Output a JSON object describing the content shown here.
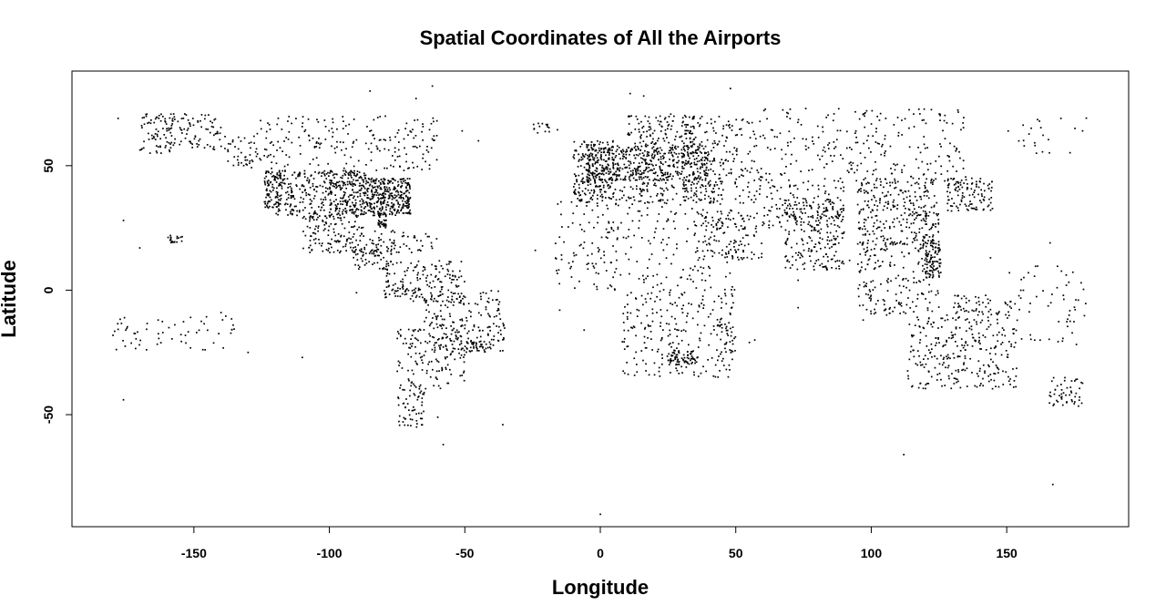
{
  "chart_data": {
    "type": "scatter",
    "title": "Spatial Coordinates of All the Airports",
    "xlabel": "Longitude",
    "ylabel": "Latitude",
    "xlim": [
      -195,
      195
    ],
    "ylim": [
      -95,
      88
    ],
    "xticks": [
      -150,
      -100,
      -50,
      0,
      50,
      100,
      150
    ],
    "yticks": [
      -50,
      0,
      50
    ],
    "xtick_labels": [
      "-150",
      "-100",
      "-50",
      "0",
      "50",
      "100",
      "150"
    ],
    "ytick_labels": [
      "-50",
      "0",
      "50"
    ],
    "grid": false,
    "marker_color": "#000000",
    "regions": [
      {
        "lon": [
          -170,
          -140
        ],
        "lat": [
          55,
          71
        ],
        "n": 150
      },
      {
        "lon": [
          -140,
          -125
        ],
        "lat": [
          50,
          62
        ],
        "n": 40
      },
      {
        "lon": [
          -130,
          -60
        ],
        "lat": [
          48,
          70
        ],
        "n": 210
      },
      {
        "lon": [
          -124,
          -118
        ],
        "lat": [
          33,
          48
        ],
        "n": 90
      },
      {
        "lon": [
          -120,
          -100
        ],
        "lat": [
          30,
          48
        ],
        "n": 180
      },
      {
        "lon": [
          -100,
          -85
        ],
        "lat": [
          30,
          48
        ],
        "n": 260
      },
      {
        "lon": [
          -85,
          -70
        ],
        "lat": [
          30,
          45
        ],
        "n": 300
      },
      {
        "lon": [
          -82,
          -79
        ],
        "lat": [
          25,
          31
        ],
        "n": 40
      },
      {
        "lon": [
          -110,
          -86
        ],
        "lat": [
          15,
          30
        ],
        "n": 140
      },
      {
        "lon": [
          -92,
          -77
        ],
        "lat": [
          8,
          17
        ],
        "n": 60
      },
      {
        "lon": [
          -85,
          -60
        ],
        "lat": [
          15,
          24
        ],
        "n": 60
      },
      {
        "lon": [
          -160,
          -154
        ],
        "lat": [
          19,
          22
        ],
        "n": 20
      },
      {
        "lon": [
          -80,
          -50
        ],
        "lat": [
          -5,
          12
        ],
        "n": 180
      },
      {
        "lon": [
          -65,
          -35
        ],
        "lat": [
          -25,
          0
        ],
        "n": 180
      },
      {
        "lon": [
          -52,
          -40
        ],
        "lat": [
          -25,
          -20
        ],
        "n": 40
      },
      {
        "lon": [
          -75,
          -50
        ],
        "lat": [
          -40,
          -15
        ],
        "n": 140
      },
      {
        "lon": [
          -75,
          -65
        ],
        "lat": [
          -55,
          -38
        ],
        "n": 60
      },
      {
        "lon": [
          -180,
          -135
        ],
        "lat": [
          -24,
          -10
        ],
        "n": 60
      },
      {
        "lon": [
          -25,
          -13
        ],
        "lat": [
          63,
          67
        ],
        "n": 15
      },
      {
        "lon": [
          -10,
          5
        ],
        "lat": [
          36,
          60
        ],
        "n": 150
      },
      {
        "lon": [
          -5,
          40
        ],
        "lat": [
          44,
          58
        ],
        "n": 520
      },
      {
        "lon": [
          10,
          35
        ],
        "lat": [
          58,
          71
        ],
        "n": 120
      },
      {
        "lon": [
          -10,
          45
        ],
        "lat": [
          35,
          45
        ],
        "n": 170
      },
      {
        "lon": [
          30,
          60
        ],
        "lat": [
          35,
          70
        ],
        "n": 220
      },
      {
        "lon": [
          -17,
          50
        ],
        "lat": [
          0,
          37
        ],
        "n": 260
      },
      {
        "lon": [
          8,
          50
        ],
        "lat": [
          -35,
          0
        ],
        "n": 230
      },
      {
        "lon": [
          25,
          35
        ],
        "lat": [
          -30,
          -24
        ],
        "n": 60
      },
      {
        "lon": [
          43,
          50
        ],
        "lat": [
          -25,
          -12
        ],
        "n": 30
      },
      {
        "lon": [
          35,
          60
        ],
        "lat": [
          12,
          32
        ],
        "n": 120
      },
      {
        "lon": [
          60,
          135
        ],
        "lat": [
          42,
          73
        ],
        "n": 260
      },
      {
        "lon": [
          60,
          90
        ],
        "lat": [
          25,
          42
        ],
        "n": 120
      },
      {
        "lon": [
          68,
          90
        ],
        "lat": [
          8,
          35
        ],
        "n": 200
      },
      {
        "lon": [
          95,
          125
        ],
        "lat": [
          18,
          45
        ],
        "n": 300
      },
      {
        "lon": [
          128,
          145
        ],
        "lat": [
          31,
          45
        ],
        "n": 110
      },
      {
        "lon": [
          95,
          125
        ],
        "lat": [
          -10,
          20
        ],
        "n": 200
      },
      {
        "lon": [
          120,
          126
        ],
        "lat": [
          5,
          18
        ],
        "n": 70
      },
      {
        "lon": [
          130,
          155
        ],
        "lat": [
          -10,
          -2
        ],
        "n": 60
      },
      {
        "lon": [
          113,
          154
        ],
        "lat": [
          -40,
          -10
        ],
        "n": 280
      },
      {
        "lon": [
          165,
          178
        ],
        "lat": [
          -47,
          -35
        ],
        "n": 50
      },
      {
        "lon": [
          155,
          180
        ],
        "lat": [
          -22,
          10
        ],
        "n": 50
      },
      {
        "lon": [
          150,
          180
        ],
        "lat": [
          55,
          70
        ],
        "n": 20
      }
    ],
    "outliers": [
      {
        "x": -178,
        "y": 69
      },
      {
        "x": -176,
        "y": 28
      },
      {
        "x": -176,
        "y": -44
      },
      {
        "x": -170,
        "y": 17
      },
      {
        "x": -62,
        "y": 82
      },
      {
        "x": -85,
        "y": 80
      },
      {
        "x": 48,
        "y": 81
      },
      {
        "x": 11,
        "y": 79
      },
      {
        "x": 16,
        "y": 78
      },
      {
        "x": 0,
        "y": -90
      },
      {
        "x": 112,
        "y": -66
      },
      {
        "x": 167,
        "y": -78
      },
      {
        "x": -58,
        "y": -62
      },
      {
        "x": -60,
        "y": -51
      },
      {
        "x": -36,
        "y": -54
      },
      {
        "x": -110,
        "y": -27
      },
      {
        "x": -90,
        "y": -1
      },
      {
        "x": 73,
        "y": -7
      },
      {
        "x": 55,
        "y": -21
      },
      {
        "x": 57,
        "y": -20
      },
      {
        "x": 73,
        "y": 4
      },
      {
        "x": -15,
        "y": -8
      },
      {
        "x": -6,
        "y": -16
      },
      {
        "x": -24,
        "y": 16
      },
      {
        "x": 92,
        "y": 12
      },
      {
        "x": 97,
        "y": -12
      },
      {
        "x": 144,
        "y": 13
      },
      {
        "x": 166,
        "y": 19
      },
      {
        "x": 172,
        "y": 2
      },
      {
        "x": 151,
        "y": 7
      },
      {
        "x": 158,
        "y": 7
      },
      {
        "x": -149,
        "y": -17
      },
      {
        "x": -140,
        "y": -9
      },
      {
        "x": -130,
        "y": -25
      },
      {
        "x": 178,
        "y": 64
      },
      {
        "x": 170,
        "y": 69
      },
      {
        "x": -51,
        "y": 64
      },
      {
        "x": -68,
        "y": 77
      },
      {
        "x": -45,
        "y": 60
      },
      {
        "x": 20,
        "y": -34
      },
      {
        "x": 18,
        "y": -34
      }
    ]
  }
}
